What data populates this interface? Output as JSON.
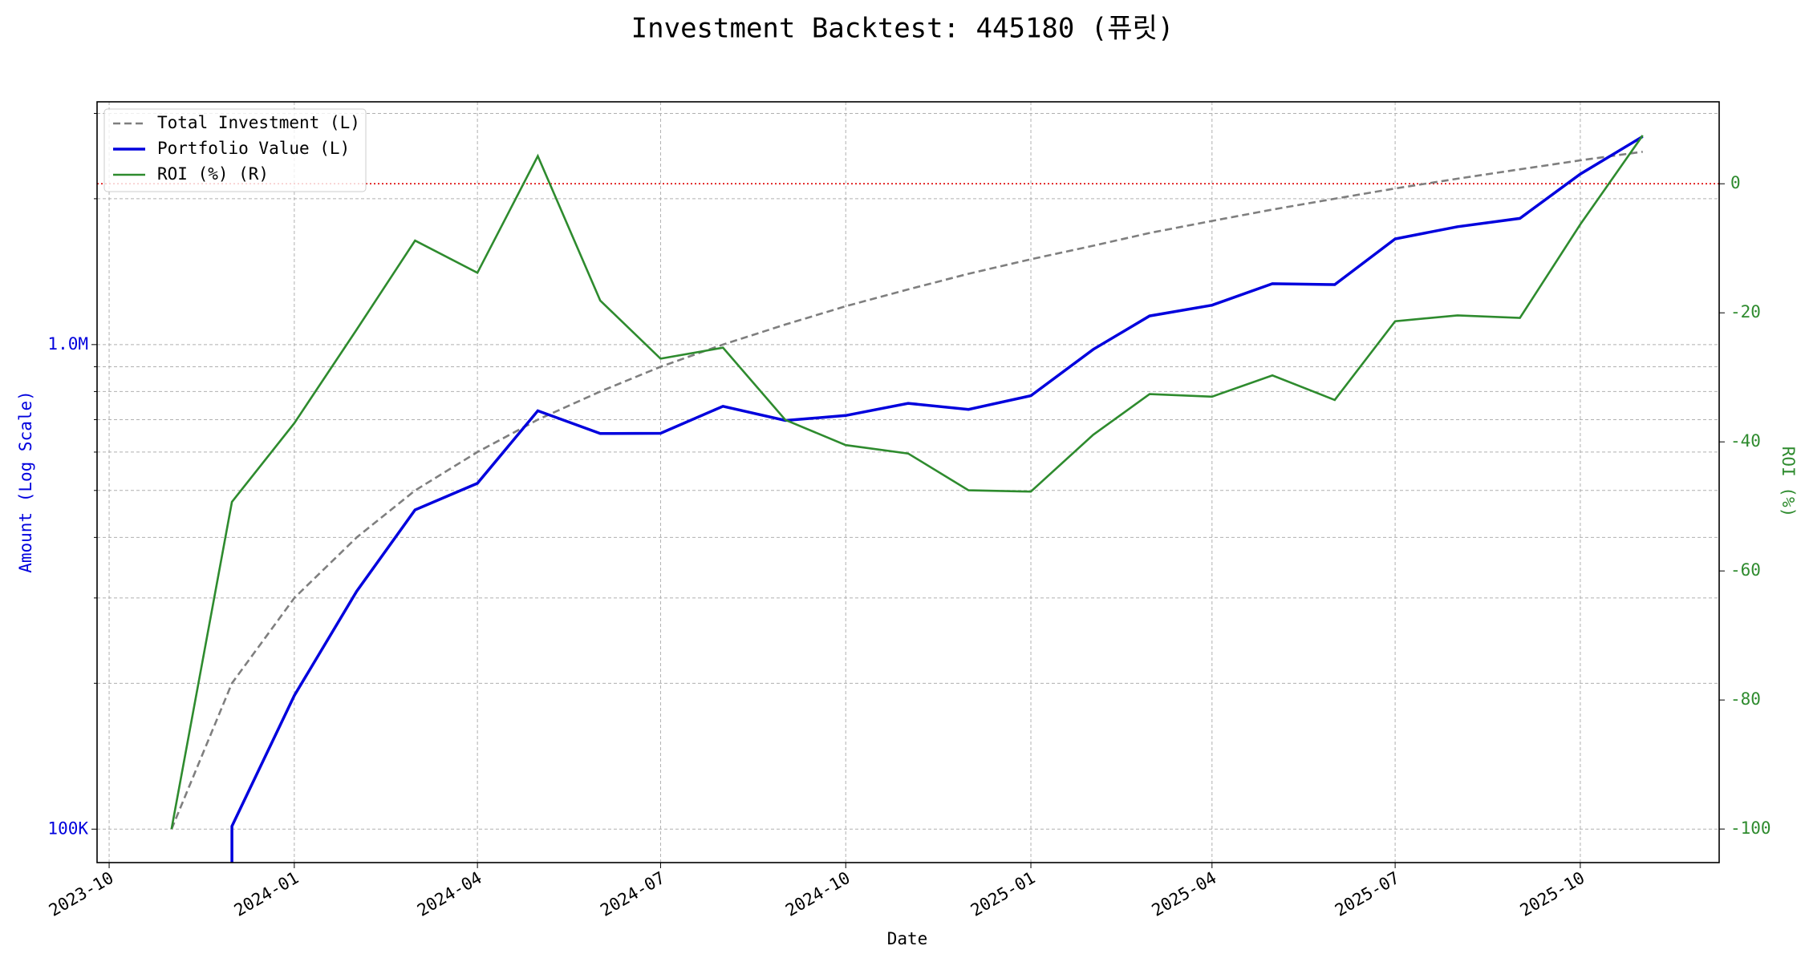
{
  "chart_data": {
    "type": "line",
    "title": "Investment Backtest: 445180 (퓨릿)",
    "xlabel": "Date",
    "ylabel": "Amount (Log Scale)",
    "y2label": "ROI (%)",
    "x": [
      "2023-11",
      "2023-12",
      "2024-01",
      "2024-02",
      "2024-03",
      "2024-04",
      "2024-05",
      "2024-06",
      "2024-07",
      "2024-08",
      "2024-09",
      "2024-10",
      "2024-11",
      "2024-12",
      "2025-01",
      "2025-02",
      "2025-03",
      "2025-04",
      "2025-05",
      "2025-06",
      "2025-07",
      "2025-08",
      "2025-09",
      "2025-10",
      "2025-11"
    ],
    "series": [
      {
        "name": "Total Investment (L)",
        "color": "#7f7f7f",
        "dashed": true,
        "axis": "y",
        "values": [
          100000,
          200000,
          300000,
          400000,
          500000,
          600000,
          700000,
          800000,
          900000,
          1000000,
          1100000,
          1200000,
          1300000,
          1400000,
          1500000,
          1600000,
          1700000,
          1800000,
          1900000,
          2000000,
          2100000,
          2200000,
          2300000,
          2400000,
          2500000
        ]
      },
      {
        "name": "Portfolio Value (L)",
        "color": "#0000dd",
        "dashed": false,
        "axis": "y",
        "values": [
          0,
          101400,
          188700,
          309600,
          456000,
          517200,
          730100,
          655200,
          656100,
          746000,
          697400,
          714000,
          756600,
          735000,
          784500,
          977600,
          1145800,
          1206000,
          1335700,
          1330000,
          1652700,
          1751200,
          1821600,
          2248800,
          2687500
        ]
      },
      {
        "name": "ROI (%) (R)",
        "color": "#2e8b2e",
        "dashed": false,
        "axis": "y2",
        "values": [
          -100,
          -49.3,
          -37.1,
          -22.6,
          -8.8,
          -13.8,
          4.3,
          -18.1,
          -27.1,
          -25.4,
          -36.6,
          -40.5,
          -41.8,
          -47.5,
          -47.7,
          -38.9,
          -32.6,
          -33.0,
          -29.7,
          -33.5,
          -21.3,
          -20.4,
          -20.8,
          -6.3,
          7.5
        ]
      }
    ],
    "reference_line": {
      "value": 0,
      "axis": "y2",
      "color": "#dd0000"
    },
    "xlim": [
      "2023-09-25",
      "2025-12-09"
    ],
    "xticks": [
      "2023-10",
      "2024-01",
      "2024-04",
      "2024-07",
      "2024-10",
      "2025-01",
      "2025-04",
      "2025-07",
      "2025-10"
    ],
    "ylog": true,
    "ylim": [
      85300,
      3170000
    ],
    "yticks": [
      {
        "value": 100000,
        "label": "100K"
      },
      {
        "value": 1000000,
        "label": "1.0M"
      }
    ],
    "yminor_ticks": [
      200000,
      300000,
      400000,
      500000,
      600000,
      700000,
      800000,
      900000,
      2000000,
      3000000
    ],
    "y2lim": [
      -105.2,
      12.7
    ],
    "y2ticks": [
      0,
      -20,
      -40,
      -60,
      -80,
      -100
    ],
    "grid": true,
    "legend": "upper left"
  }
}
